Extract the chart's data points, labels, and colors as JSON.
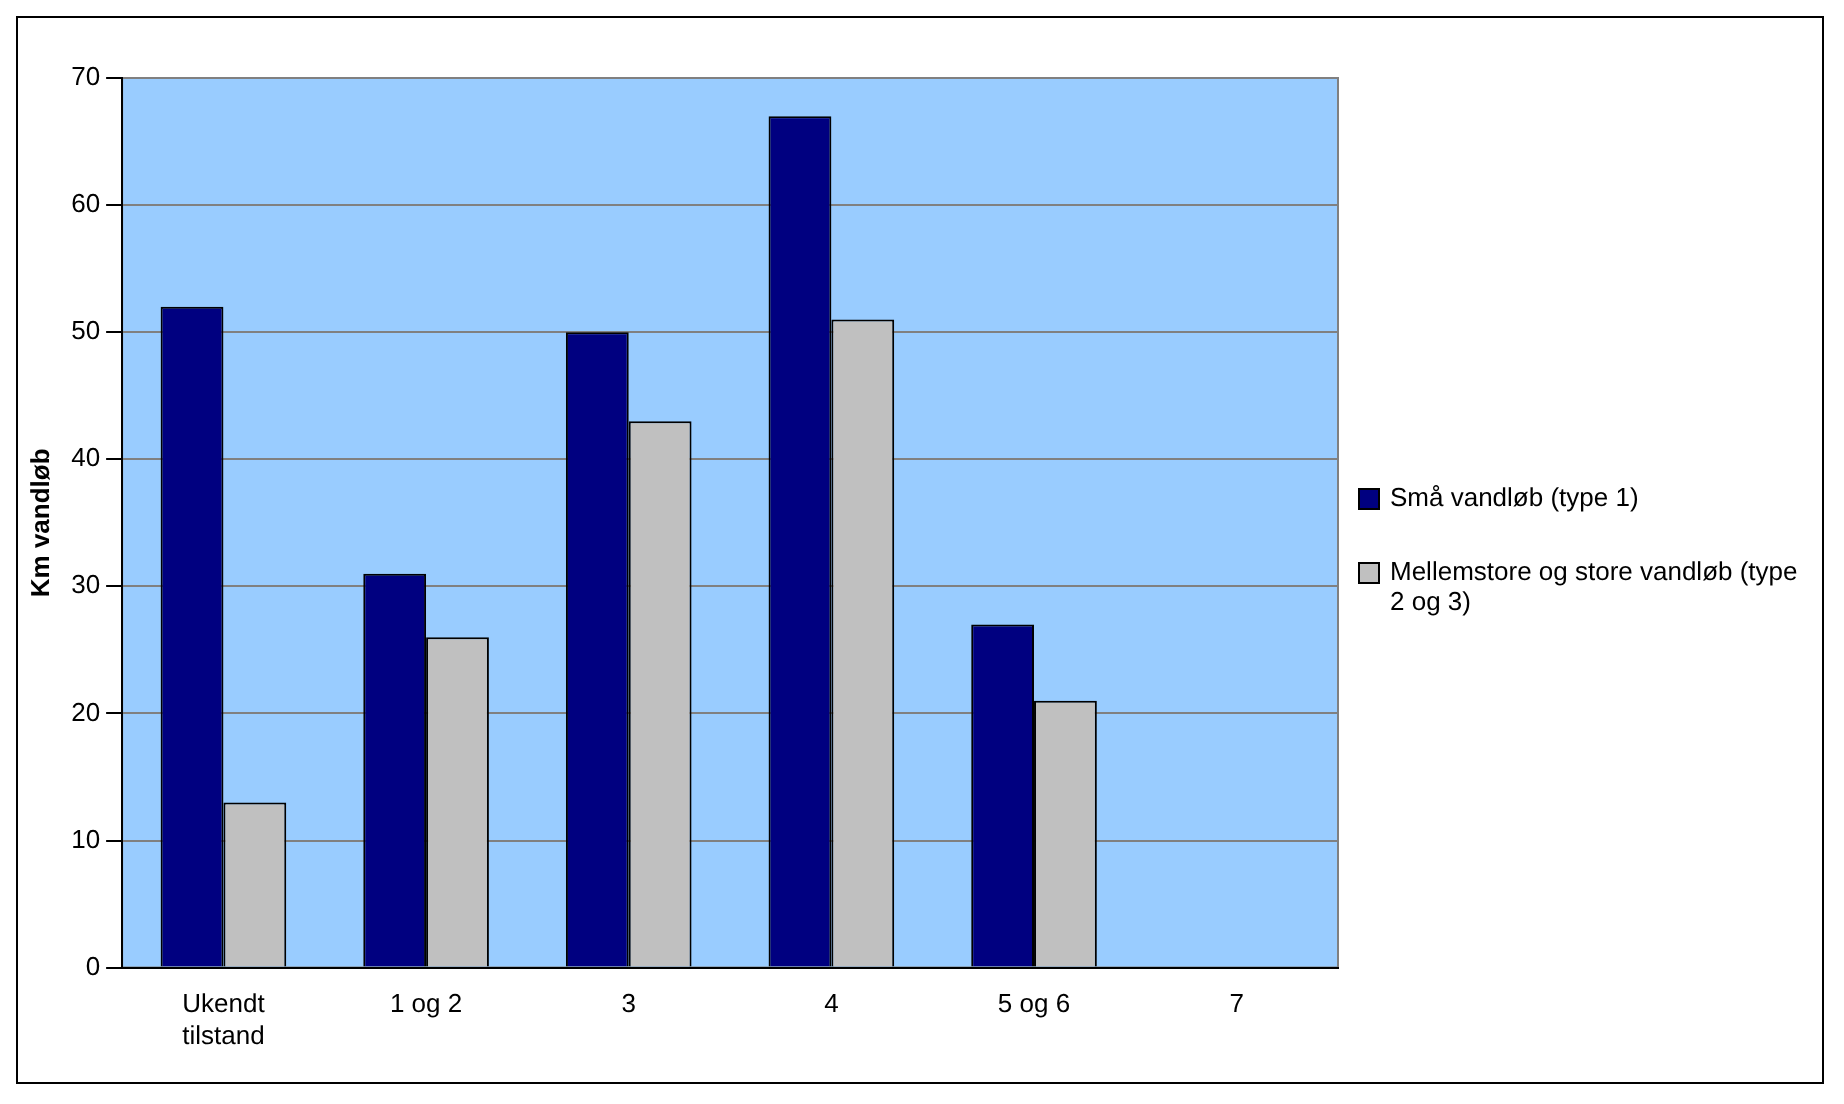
{
  "chart_data": {
    "type": "bar",
    "ylabel": "Km vandløb",
    "categories": [
      "Ukendt tilstand",
      "1 og 2",
      "3",
      "4",
      "5 og 6",
      "7"
    ],
    "series": [
      {
        "name": "Små vandløb (type 1)",
        "color": "#000080",
        "values": [
          52,
          31,
          50,
          67,
          27,
          null
        ]
      },
      {
        "name": "Mellemstore og store vandløb (type 2 og 3)",
        "color": "#c0c0c0",
        "values": [
          13,
          26,
          43,
          51,
          21,
          null
        ]
      }
    ],
    "ylim": [
      0,
      70
    ],
    "yticks": [
      0,
      10,
      20,
      30,
      40,
      50,
      60,
      70
    ],
    "grid": "y",
    "legend": "right"
  }
}
